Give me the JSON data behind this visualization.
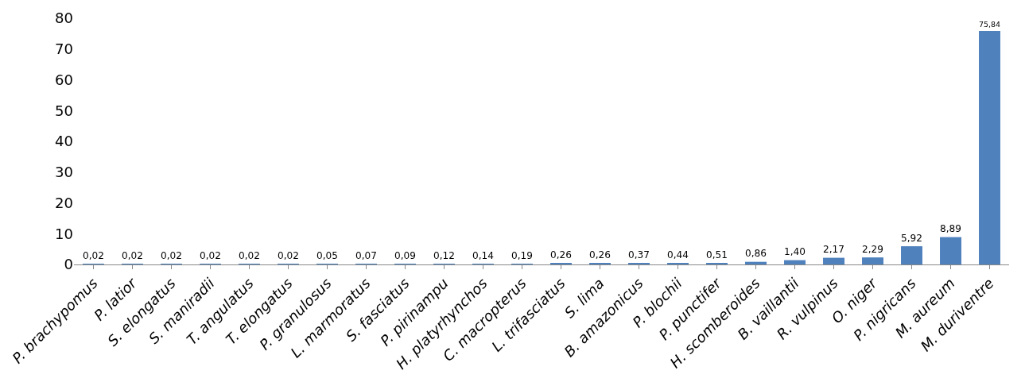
{
  "chart_data": {
    "type": "bar",
    "categories": [
      "P. brachypomus",
      "P. latior",
      "S. elongatus",
      "S. maniradii",
      "T. angulatus",
      "T. elongatus",
      "P. granulosus",
      "L. marmoratus",
      "S. fasciatus",
      "P. pirinampu",
      "H. platyrhynchos",
      "C. macropterus",
      "L. trifasciatus",
      "S. lima",
      "B. amazonicus",
      "P. blochii",
      "P. punctifer",
      "H. scomberoides",
      "B. vaillantii",
      "R. vulpinus",
      "O. niger",
      "P. nigricans",
      "M. aureum",
      "M. duriventre"
    ],
    "values": [
      0.02,
      0.02,
      0.02,
      0.02,
      0.02,
      0.02,
      0.05,
      0.07,
      0.09,
      0.12,
      0.14,
      0.19,
      0.26,
      0.26,
      0.37,
      0.44,
      0.51,
      0.86,
      1.4,
      2.17,
      2.29,
      5.92,
      8.89,
      75.84
    ],
    "value_labels": [
      "0,02",
      "0,02",
      "0,02",
      "0,02",
      "0,02",
      "0,02",
      "0,05",
      "0,07",
      "0,09",
      "0,12",
      "0,14",
      "0,19",
      "0,26",
      "0,26",
      "0,37",
      "0,44",
      "0,51",
      "0,86",
      "1,40",
      "2,17",
      "2,29",
      "5,92",
      "8,89",
      "75,84"
    ],
    "color": "#4f81bd",
    "ylim": [
      0,
      80
    ],
    "yticks": [
      0,
      10,
      20,
      30,
      40,
      50,
      60,
      70,
      80
    ],
    "grid": false,
    "legend": false
  }
}
